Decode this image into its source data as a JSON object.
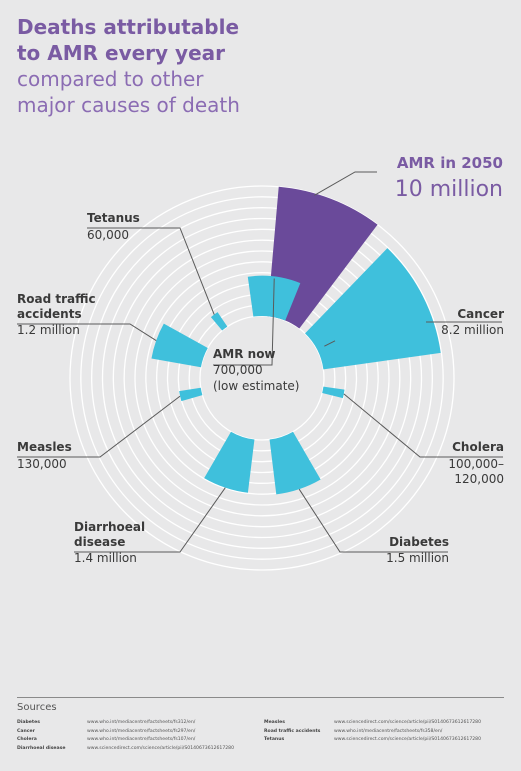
{
  "header": {
    "title_line1": "Deaths attributable",
    "title_line2": "to AMR every year",
    "subtitle_line1": "compared to other",
    "subtitle_line2": "major causes of death"
  },
  "colors": {
    "amr_2050": "#6a4a9a",
    "other_causes": "#3fc0dc",
    "title": "#7a5ba3",
    "rings": "#ffffff",
    "background": "#e8e8e9",
    "leader_lines": "#5a5a5a"
  },
  "chart_data": {
    "type": "radial_bar",
    "center_label": {
      "name": "AMR now",
      "value_line1": "700,000",
      "value_line2": "(low estimate)"
    },
    "callout": {
      "name": "AMR in 2050",
      "value": "10 million"
    },
    "segments": [
      {
        "key": "amr2050",
        "name": "AMR in 2050",
        "value_label": "10 million",
        "deaths": 10000000,
        "highlight": true
      },
      {
        "key": "cancer",
        "name": "Cancer",
        "value_label": "8.2 million",
        "deaths": 8200000
      },
      {
        "key": "cholera",
        "name": "Cholera",
        "value_label": "100,000–120,000",
        "value_line1": "100,000–",
        "value_line2": "120,000",
        "deaths": 120000
      },
      {
        "key": "diabetes",
        "name": "Diabetes",
        "value_label": "1.5 million",
        "deaths": 1500000
      },
      {
        "key": "diarrhoeal",
        "name": "Diarrhoeal disease",
        "name_line1": "Diarrhoeal",
        "name_line2": "disease",
        "value_label": "1.4 million",
        "deaths": 1400000
      },
      {
        "key": "measles",
        "name": "Measles",
        "value_label": "130,000",
        "deaths": 130000
      },
      {
        "key": "road",
        "name": "Road traffic accidents",
        "name_line1": "Road traffic",
        "name_line2": "accidents",
        "value_label": "1.2 million",
        "deaths": 1200000
      },
      {
        "key": "tetanus",
        "name": "Tetanus",
        "value_label": "60,000",
        "deaths": 60000
      },
      {
        "key": "amrnow",
        "name": "AMR now",
        "value_label": "700,000 (low estimate)",
        "deaths": 700000
      }
    ]
  },
  "sources": {
    "heading": "Sources",
    "left": [
      {
        "name": "Diabetes",
        "url": "www.who.int/mediacentre/factsheets/fs312/en/"
      },
      {
        "name": "Cancer",
        "url": "www.who.int/mediacentre/factsheets/fs297/en/"
      },
      {
        "name": "Cholera",
        "url": "www.who.int/mediacentre/factsheets/fs107/en/"
      },
      {
        "name": "Diarrhoeal disease",
        "url": "www.sciencedirect.com/science/article/pii/S0140673612617280"
      }
    ],
    "right": [
      {
        "name": "Measles",
        "url": "www.sciencedirect.com/science/article/pii/S0140673612617280"
      },
      {
        "name": "Road traffic accidents",
        "url": "www.who.int/mediacentre/factsheets/fs358/en/"
      },
      {
        "name": "Tetanus",
        "url": "www.sciencedirect.com/science/article/pii/S0140673612617280"
      }
    ]
  }
}
